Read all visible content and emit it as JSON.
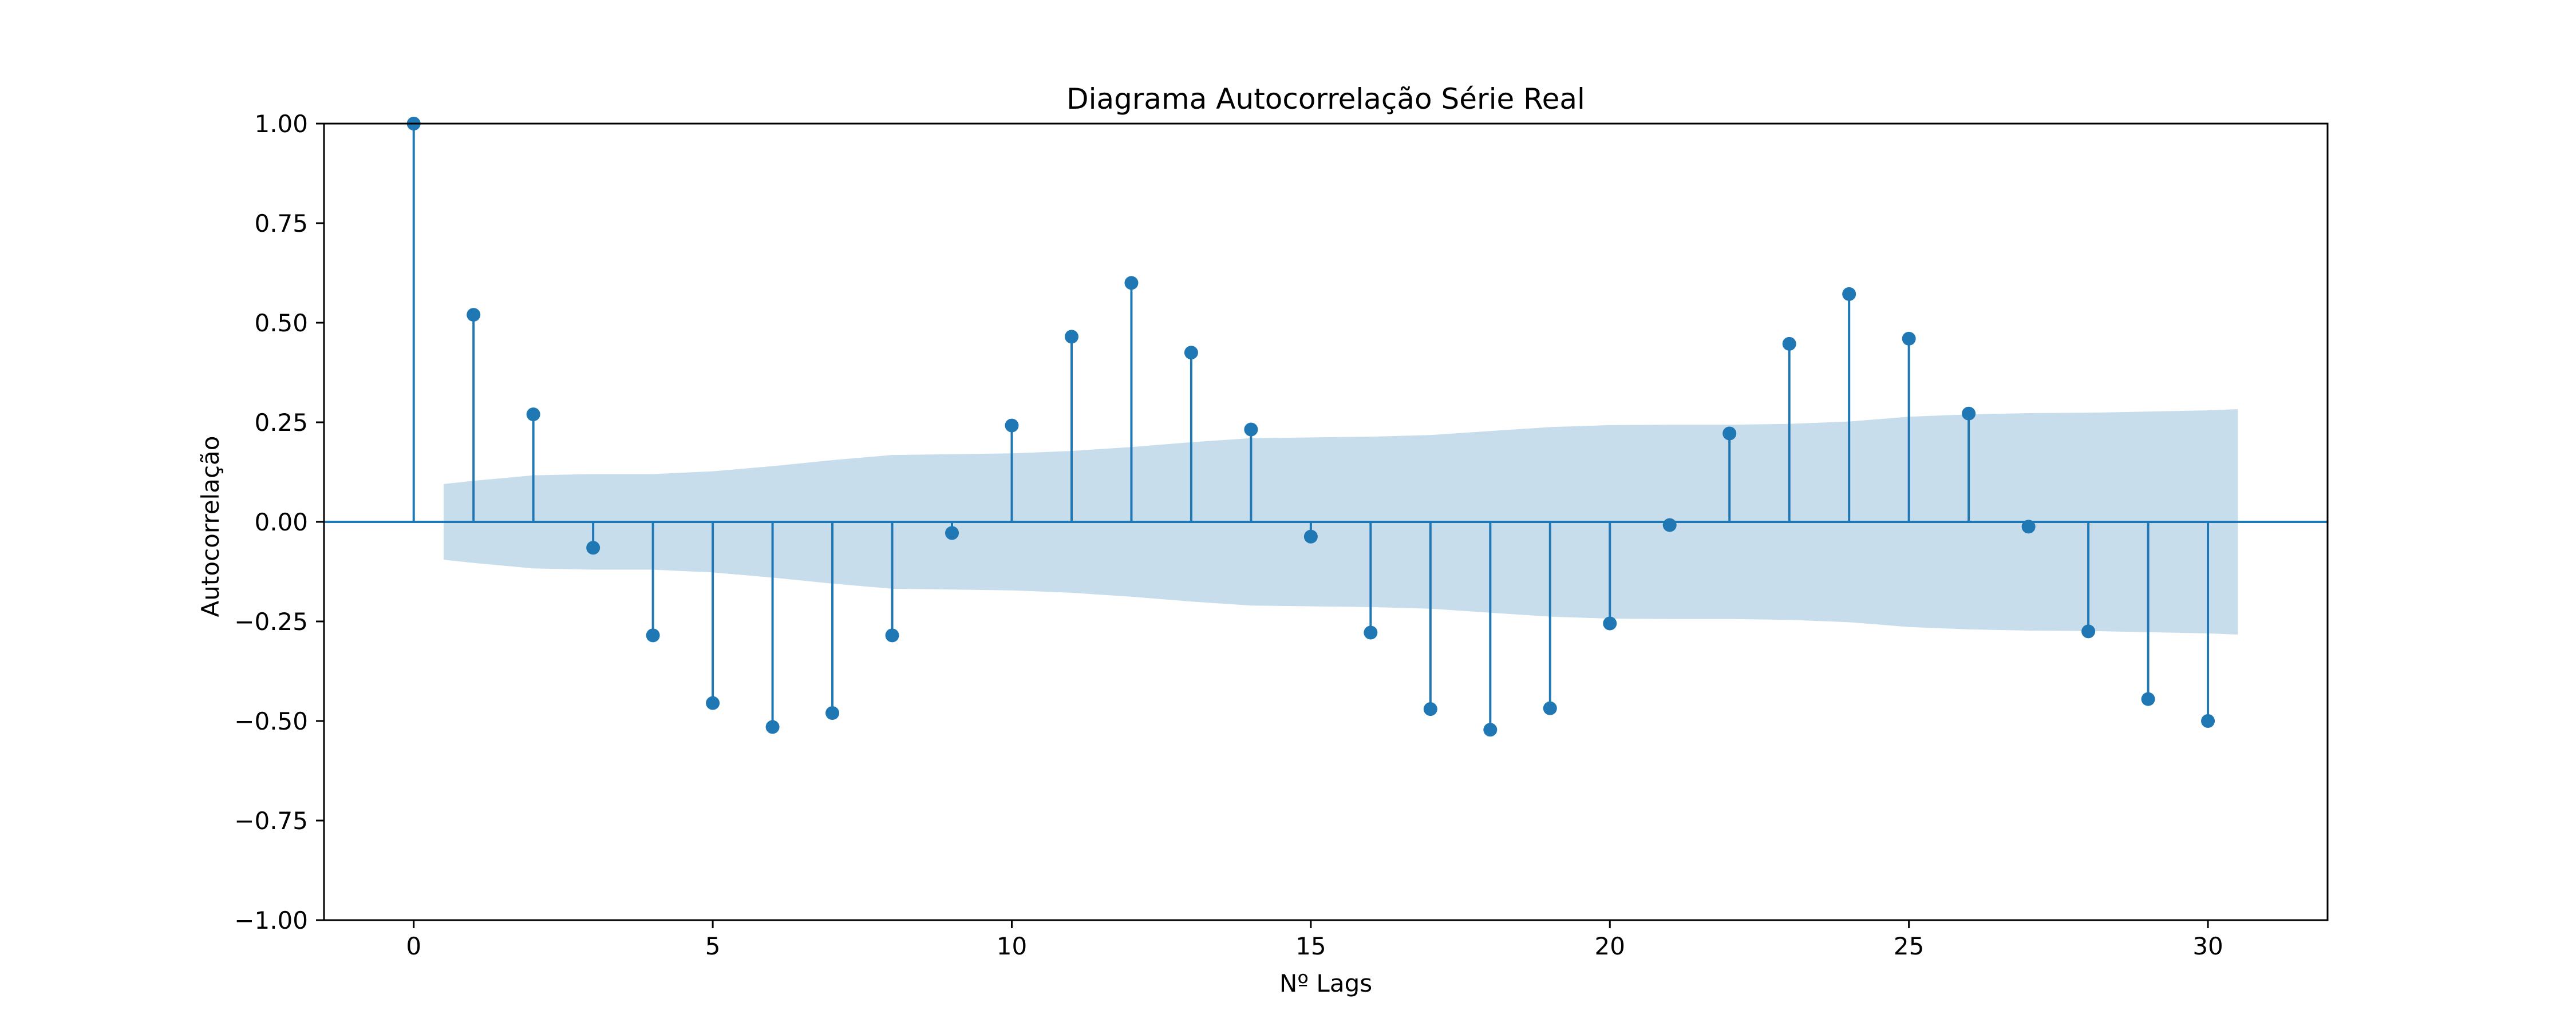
{
  "chart_data": {
    "type": "stem",
    "title": "Diagrama Autocorrelação Série Real",
    "xlabel": "Nº Lags",
    "ylabel": "Autocorrelação",
    "xlim": [
      -1.5,
      32.0
    ],
    "ylim": [
      -1.0,
      1.0
    ],
    "x_ticks": [
      0,
      5,
      10,
      15,
      20,
      25,
      30
    ],
    "y_ticks": [
      -1.0,
      -0.75,
      -0.5,
      -0.25,
      0.0,
      0.25,
      0.5,
      0.75,
      1.0
    ],
    "y_tick_labels": [
      "−1.00",
      "−0.75",
      "−0.50",
      "−0.25",
      "0.00",
      "0.25",
      "0.50",
      "0.75",
      "1.00"
    ],
    "x_tick_labels": [
      "0",
      "5",
      "10",
      "15",
      "20",
      "25",
      "30"
    ],
    "series": [
      {
        "lags": [
          0,
          1,
          2,
          3,
          4,
          5,
          6,
          7,
          8,
          9,
          10,
          11,
          12,
          13,
          14,
          15,
          16,
          17,
          18,
          19,
          20,
          21,
          22,
          23,
          24,
          25,
          26,
          27,
          28,
          29,
          30
        ],
        "values": [
          1.0,
          0.52,
          0.27,
          -0.065,
          -0.285,
          -0.455,
          -0.515,
          -0.48,
          -0.285,
          -0.028,
          0.242,
          0.465,
          0.6,
          0.425,
          0.232,
          -0.037,
          -0.278,
          -0.47,
          -0.522,
          -0.468,
          -0.255,
          -0.008,
          0.222,
          0.447,
          0.572,
          0.46,
          0.272,
          -0.012,
          -0.275,
          -0.445,
          -0.5
        ]
      }
    ],
    "confidence_band": {
      "lags": [
        0.5,
        1,
        2,
        3,
        4,
        5,
        6,
        7,
        8,
        9,
        10,
        11,
        12,
        13,
        14,
        15,
        16,
        17,
        18,
        19,
        20,
        21,
        22,
        23,
        24,
        25,
        26,
        27,
        28,
        29,
        30,
        30.5
      ],
      "upper": [
        0.095,
        0.103,
        0.117,
        0.12,
        0.12,
        0.127,
        0.14,
        0.155,
        0.168,
        0.17,
        0.172,
        0.178,
        0.188,
        0.2,
        0.21,
        0.212,
        0.214,
        0.218,
        0.228,
        0.238,
        0.243,
        0.244,
        0.244,
        0.246,
        0.252,
        0.264,
        0.27,
        0.273,
        0.274,
        0.277,
        0.28,
        0.283
      ],
      "lower": [
        -0.095,
        -0.103,
        -0.117,
        -0.12,
        -0.12,
        -0.127,
        -0.14,
        -0.155,
        -0.168,
        -0.17,
        -0.172,
        -0.178,
        -0.188,
        -0.2,
        -0.21,
        -0.212,
        -0.214,
        -0.218,
        -0.228,
        -0.238,
        -0.243,
        -0.244,
        -0.244,
        -0.246,
        -0.252,
        -0.264,
        -0.27,
        -0.273,
        -0.274,
        -0.277,
        -0.28,
        -0.283
      ]
    },
    "grid": false,
    "legend": "none",
    "colors": {
      "stem": "#1f77b4",
      "band": "#1f77b4",
      "baseline": "#1f77b4",
      "axes": "#000000"
    }
  }
}
